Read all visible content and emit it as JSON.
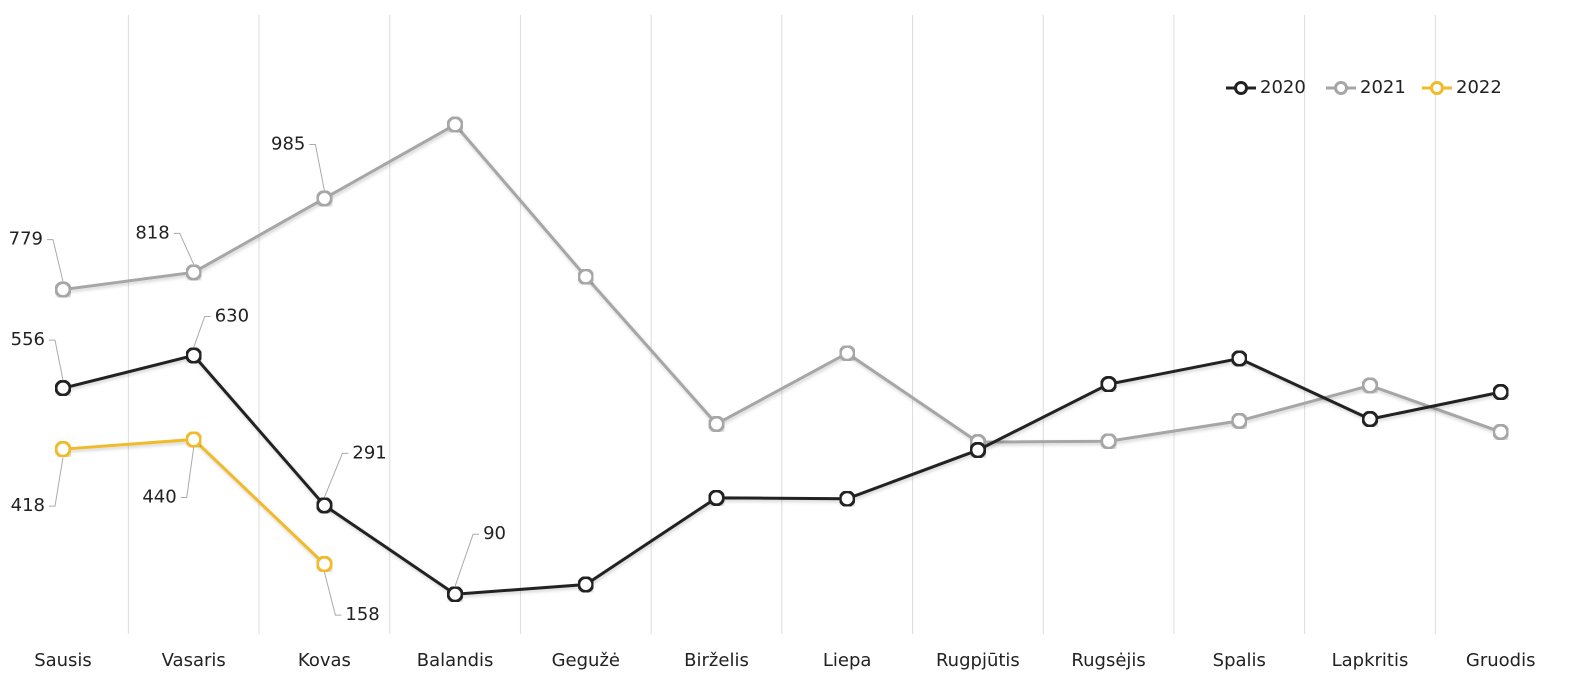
{
  "chart_data": {
    "type": "line",
    "categories": [
      "Sausis",
      "Vasaris",
      "Kovas",
      "Balandis",
      "Gegužė",
      "Birželis",
      "Liepa",
      "Rugpjūtis",
      "Rugsėjis",
      "Spalis",
      "Lapkritis",
      "Gruodis"
    ],
    "series": [
      {
        "name": "2020",
        "color": "#222222",
        "values": [
          556,
          630,
          291,
          90,
          112,
          308,
          306,
          416,
          565,
          623,
          486,
          547
        ]
      },
      {
        "name": "2021",
        "color": "#a6a6a6",
        "values": [
          779,
          818,
          985,
          1152,
          808,
          475,
          635,
          434,
          436,
          482,
          562,
          457
        ]
      },
      {
        "name": "2022",
        "color": "#f0bb2a",
        "values": [
          418,
          440,
          158,
          null,
          null,
          null,
          null,
          null,
          null,
          null,
          null,
          null
        ]
      }
    ],
    "ylim": [
      0,
      1400
    ],
    "legend": "top-right",
    "grid": true
  }
}
